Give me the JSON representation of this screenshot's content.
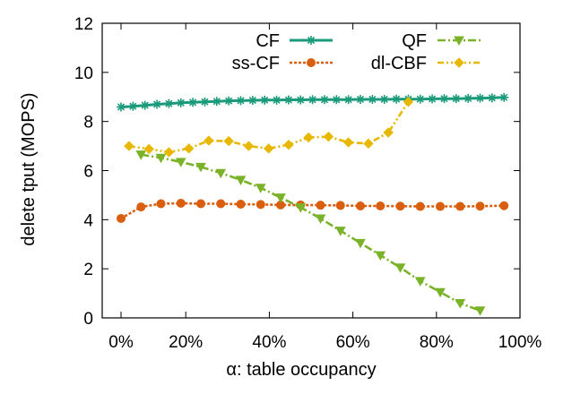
{
  "chart_data": {
    "type": "line",
    "title": "",
    "xlabel": "α: table occupancy",
    "ylabel": "delete tput (MOPS)",
    "xlim": [
      0,
      100
    ],
    "ylim": [
      0,
      12
    ],
    "x_ticks": [
      0,
      20,
      40,
      60,
      80,
      100
    ],
    "x_tick_labels": [
      "0%",
      "20%",
      "40%",
      "60%",
      "80%",
      "100%"
    ],
    "y_ticks": [
      0,
      2,
      4,
      6,
      8,
      10,
      12
    ],
    "y_tick_labels": [
      "0",
      "2",
      "4",
      "6",
      "8",
      "10",
      "12"
    ],
    "grid": false,
    "legend_position": "top-right",
    "series": [
      {
        "name": "CF",
        "color": "#1a9a7a",
        "line_style": "solid",
        "marker": "star",
        "x": [
          0,
          3,
          6,
          9,
          12,
          15,
          18,
          21,
          24,
          27,
          30,
          33,
          36,
          39,
          42,
          45,
          48,
          51,
          54,
          57,
          60,
          63,
          66,
          69,
          72,
          75,
          78,
          81,
          84,
          87,
          90,
          93,
          96
        ],
        "y": [
          8.59,
          8.62,
          8.66,
          8.7,
          8.73,
          8.76,
          8.78,
          8.8,
          8.82,
          8.84,
          8.85,
          8.86,
          8.87,
          8.87,
          8.88,
          8.88,
          8.89,
          8.89,
          8.89,
          8.89,
          8.9,
          8.9,
          8.9,
          8.91,
          8.91,
          8.91,
          8.92,
          8.93,
          8.93,
          8.94,
          8.95,
          8.96,
          8.98
        ]
      },
      {
        "name": "ss-CF",
        "color": "#d95f0e",
        "line_style": "dotted",
        "marker": "circle",
        "x": [
          0,
          5,
          10,
          15,
          20,
          25,
          30,
          35,
          40,
          45,
          50,
          55,
          60,
          65,
          70,
          75,
          80,
          85,
          90,
          96
        ],
        "y": [
          4.05,
          4.52,
          4.65,
          4.67,
          4.65,
          4.65,
          4.63,
          4.62,
          4.6,
          4.6,
          4.59,
          4.58,
          4.56,
          4.56,
          4.55,
          4.54,
          4.54,
          4.54,
          4.55,
          4.57
        ]
      },
      {
        "name": "QF",
        "color": "#7ab32a",
        "line_style": "dashdot",
        "marker": "triangle-down",
        "x": [
          5,
          10,
          15,
          20,
          25,
          30,
          35,
          40,
          45,
          50,
          55,
          60,
          65,
          70,
          75,
          80,
          85,
          90
        ],
        "y": [
          6.65,
          6.52,
          6.35,
          6.15,
          5.9,
          5.62,
          5.3,
          4.9,
          4.5,
          4.05,
          3.55,
          3.05,
          2.55,
          2.05,
          1.5,
          1.05,
          0.6,
          0.3
        ]
      },
      {
        "name": "dl-CBF",
        "color": "#e8b800",
        "line_style": "dashdotdot",
        "marker": "diamond",
        "x": [
          2,
          7,
          12,
          17,
          22,
          27,
          32,
          37,
          42,
          47,
          52,
          57,
          62,
          67,
          72
        ],
        "y": [
          7.0,
          6.88,
          6.75,
          6.9,
          7.22,
          7.2,
          7.0,
          6.9,
          7.05,
          7.35,
          7.38,
          7.15,
          7.1,
          7.55,
          8.8
        ]
      }
    ]
  }
}
